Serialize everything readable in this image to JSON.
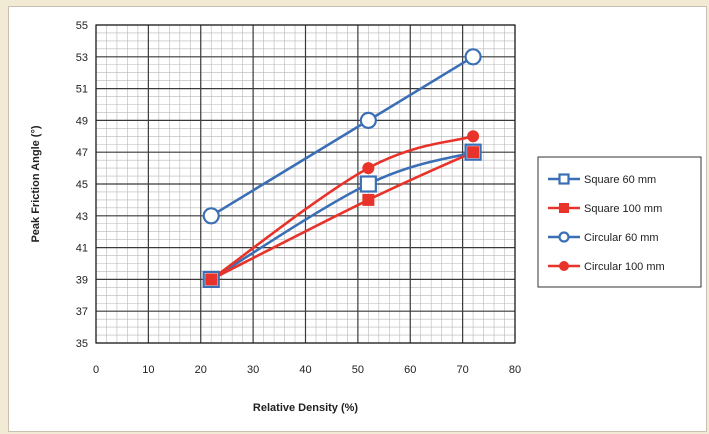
{
  "chart_data": {
    "type": "line",
    "xlabel": "Relative Density (%)",
    "ylabel": "Peak Friction Angle (°)",
    "xlim": [
      0,
      80
    ],
    "ylim": [
      35,
      55
    ],
    "x_ticks": [
      0,
      10,
      20,
      30,
      40,
      50,
      60,
      70,
      80
    ],
    "y_ticks": [
      35,
      37,
      39,
      41,
      43,
      45,
      47,
      49,
      51,
      53,
      55
    ],
    "grid": "on (major and minor)",
    "legend_position": "right",
    "series": [
      {
        "name": "Square 60 mm",
        "color": "#3b6fb5",
        "marker": "square-open",
        "x": [
          22,
          52,
          72
        ],
        "y": [
          39,
          45,
          47
        ]
      },
      {
        "name": "Square 100 mm",
        "color": "#e8332a",
        "marker": "square-filled",
        "x": [
          22,
          52,
          72
        ],
        "y": [
          39,
          44,
          47
        ]
      },
      {
        "name": "Circular 60 mm",
        "color": "#3b6fb5",
        "marker": "circle-open",
        "x": [
          22,
          52,
          72
        ],
        "y": [
          43,
          49,
          53
        ]
      },
      {
        "name": "Circular 100 mm",
        "color": "#e8332a",
        "marker": "circle-filled",
        "x": [
          22,
          52,
          72
        ],
        "y": [
          39,
          46,
          48
        ]
      }
    ]
  }
}
